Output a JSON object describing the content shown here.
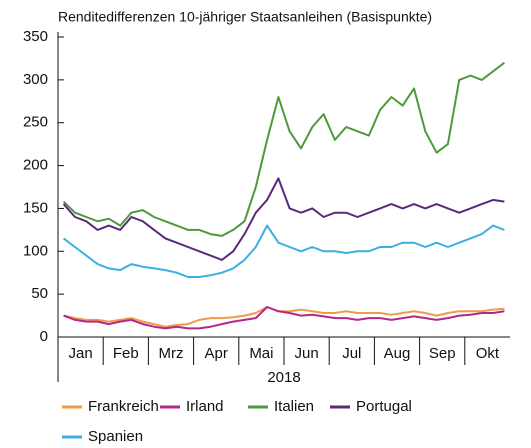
{
  "chart_data": {
    "type": "line",
    "title": "Renditedifferenzen 10-jähriger Staatsanleihen (Basispunkte)",
    "xlabel": "2018",
    "categories": [
      "Jan",
      null,
      null,
      null,
      "Feb",
      null,
      null,
      null,
      "Mrz",
      null,
      null,
      null,
      "Apr",
      null,
      null,
      null,
      "Mai",
      null,
      null,
      null,
      "Jun",
      null,
      null,
      null,
      "Jul",
      null,
      null,
      null,
      "Aug",
      null,
      null,
      null,
      "Sep",
      null,
      null,
      null,
      "Okt",
      null,
      null,
      null
    ],
    "ylim": [
      0,
      350
    ],
    "yticks": [
      0,
      50,
      100,
      150,
      200,
      250,
      300,
      350
    ],
    "grid": false,
    "legend": "bottom",
    "series": [
      {
        "name": "Frankreich",
        "color": "#f39a4a",
        "values": [
          25,
          22,
          20,
          20,
          18,
          20,
          22,
          18,
          15,
          12,
          14,
          15,
          20,
          22,
          22,
          23,
          25,
          28,
          35,
          30,
          30,
          32,
          30,
          28,
          28,
          30,
          28,
          28,
          28,
          26,
          28,
          30,
          28,
          25,
          28,
          30,
          30,
          30,
          32,
          33
        ]
      },
      {
        "name": "Irland",
        "color": "#b5288a",
        "values": [
          25,
          20,
          18,
          18,
          15,
          18,
          20,
          15,
          12,
          10,
          12,
          10,
          10,
          12,
          15,
          18,
          20,
          22,
          35,
          30,
          28,
          25,
          26,
          24,
          22,
          22,
          20,
          22,
          22,
          20,
          22,
          24,
          22,
          20,
          22,
          25,
          26,
          28,
          28,
          30
        ]
      },
      {
        "name": "Italien",
        "color": "#4e9a3a",
        "values": [
          158,
          145,
          140,
          135,
          138,
          130,
          145,
          148,
          140,
          135,
          130,
          125,
          125,
          120,
          118,
          125,
          135,
          175,
          230,
          280,
          240,
          220,
          245,
          260,
          230,
          245,
          240,
          235,
          265,
          280,
          270,
          290,
          240,
          215,
          225,
          300,
          305,
          300,
          310,
          320
        ]
      },
      {
        "name": "Portugal",
        "color": "#5b2a7a",
        "values": [
          155,
          140,
          135,
          125,
          130,
          125,
          140,
          135,
          125,
          115,
          110,
          105,
          100,
          95,
          90,
          100,
          120,
          145,
          160,
          185,
          150,
          145,
          150,
          140,
          145,
          145,
          140,
          145,
          150,
          155,
          150,
          155,
          150,
          155,
          150,
          145,
          150,
          155,
          160,
          158
        ]
      },
      {
        "name": "Spanien",
        "color": "#3bb0e0",
        "values": [
          115,
          105,
          95,
          85,
          80,
          78,
          85,
          82,
          80,
          78,
          75,
          70,
          70,
          72,
          75,
          80,
          90,
          105,
          130,
          110,
          105,
          100,
          105,
          100,
          100,
          98,
          100,
          100,
          105,
          105,
          110,
          110,
          105,
          110,
          105,
          110,
          115,
          120,
          130,
          125
        ]
      }
    ]
  }
}
